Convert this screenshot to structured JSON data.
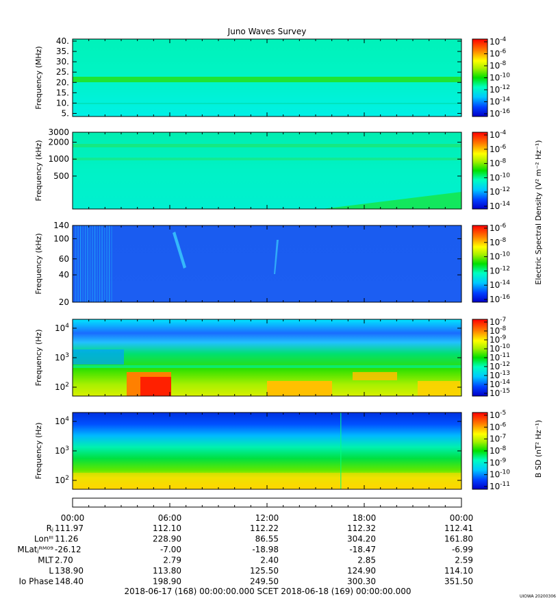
{
  "title": "Juno Waves Survey",
  "colorbar_labels": {
    "electric": "Electric Spectral Density (V² m⁻² Hz⁻¹)",
    "magnetic": "B SD (nT² Hz⁻¹)"
  },
  "ephemeris": {
    "time_ticks": [
      "00:00",
      "06:00",
      "12:00",
      "18:00",
      "00:00"
    ],
    "rows": [
      {
        "label": "Rⱼ",
        "values": [
          "111.97",
          "112.10",
          "112.22",
          "112.32",
          "112.41"
        ]
      },
      {
        "label": "Lonᴵᴵᴵ",
        "values": [
          "11.26",
          "228.90",
          "86.55",
          "304.20",
          "161.80"
        ]
      },
      {
        "label": "MLatⱼᴿᴹ⁰⁹",
        "values": [
          "-26.12",
          "-7.00",
          "-18.98",
          "-18.47",
          "-6.99"
        ]
      },
      {
        "label": "MLT",
        "values": [
          "2.70",
          "2.79",
          "2.40",
          "2.85",
          "2.59"
        ]
      },
      {
        "label": "L",
        "values": [
          "138.90",
          "113.80",
          "125.50",
          "124.90",
          "114.10"
        ]
      },
      {
        "label": "Io Phase",
        "values": [
          "148.40",
          "198.90",
          "249.50",
          "300.30",
          "351.50"
        ]
      }
    ],
    "footer": "2018-06-17 (168) 00:00:00.000     SCET     2018-06-18 (169) 00:00:00.000"
  },
  "watermark": "UIOWA 20200306",
  "chart_data": [
    {
      "type": "heatmap",
      "title": "Juno Waves Survey",
      "ylabel": "Frequency (MHz)",
      "y_ticks": [
        "40.",
        "35.",
        "30.",
        "25.",
        "20.",
        "15.",
        "10.",
        "5."
      ],
      "ylim": [
        3.5,
        41
      ],
      "colorbar_ticks": [
        "-4",
        "-6",
        "-8",
        "-10",
        "-12",
        "-14",
        "-16"
      ],
      "colorbar_label": ""
    },
    {
      "type": "heatmap",
      "ylabel": "Frequency (kHz)",
      "y_scale": "log",
      "y_ticks": [
        "3000",
        "2000",
        "1000",
        "500"
      ],
      "ylim": [
        130,
        3000
      ],
      "colorbar_ticks": [
        "-4",
        "-6",
        "-8",
        "-10",
        "-12",
        "-14"
      ],
      "colorbar_label": "Electric Spectral Density (V² m⁻² Hz⁻¹)"
    },
    {
      "type": "heatmap",
      "ylabel": "Frequency (kHz)",
      "y_scale": "log",
      "y_ticks": [
        "140",
        "100",
        "60",
        "40",
        "20"
      ],
      "ylim": [
        20,
        140
      ],
      "colorbar_ticks": [
        "-6",
        "-8",
        "-10",
        "-12",
        "-14",
        "-16"
      ],
      "colorbar_label": ""
    },
    {
      "type": "heatmap",
      "ylabel": "Frequency (Hz)",
      "y_scale": "log",
      "y_ticks": [
        "4",
        "3",
        "2"
      ],
      "ylim": [
        50,
        20000
      ],
      "colorbar_ticks": [
        "-7",
        "-8",
        "-9",
        "-10",
        "-11",
        "-12",
        "-13",
        "-14",
        "-15"
      ],
      "colorbar_label": ""
    },
    {
      "type": "heatmap",
      "ylabel": "Frequency (Hz)",
      "y_scale": "log",
      "y_ticks": [
        "4",
        "3",
        "2"
      ],
      "ylim": [
        50,
        20000
      ],
      "colorbar_ticks": [
        "-5",
        "-6",
        "-7",
        "-8",
        "-9",
        "-10",
        "-11"
      ],
      "colorbar_label": "B SD (nT² Hz⁻¹)"
    }
  ]
}
